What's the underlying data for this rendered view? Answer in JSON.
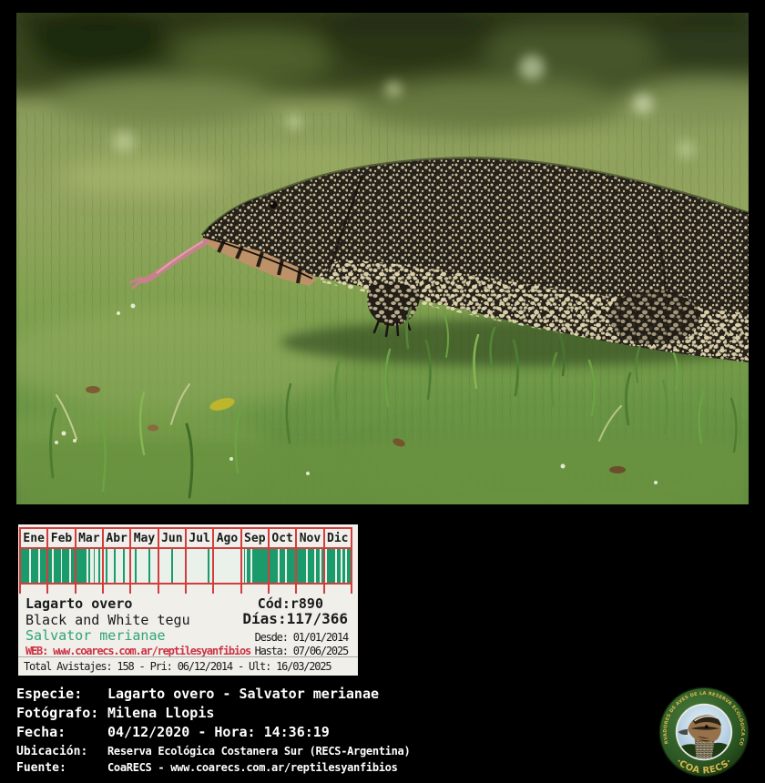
{
  "card": {
    "bg": "#f0efea",
    "grid_color": "#d43d3d",
    "bar_color": "#1b9a6c",
    "months": [
      {
        "label": "Ene",
        "pattern": "111110111101111"
      },
      {
        "label": "Feb",
        "pattern": "110111101111011"
      },
      {
        "label": "Mar",
        "pattern": "111111010010010"
      },
      {
        "label": "Abr",
        "pattern": "010000100001000"
      },
      {
        "label": "May",
        "pattern": "001000000010000"
      },
      {
        "label": "Jun",
        "pattern": "000000010000000"
      },
      {
        "label": "Jul",
        "pattern": "000000000000100"
      },
      {
        "label": "Ago",
        "pattern": "000000000000000"
      },
      {
        "label": "Sep",
        "pattern": "010110111111111"
      },
      {
        "label": "Oct",
        "pattern": "111110111011111"
      },
      {
        "label": "Nov",
        "pattern": "111110111101101"
      },
      {
        "label": "Dic",
        "pattern": "011111011011011"
      }
    ],
    "common_name": "Lagarto overo",
    "english_name": "Black and White tegu",
    "scientific_name": "Salvator merianae",
    "scientific_color": "#2fa474",
    "web_line": "WEB: www.coarecs.com.ar/reptilesyanfibios",
    "web_color": "#cc3344",
    "code": "Cód:r890",
    "days": "Días:117/366",
    "desde": "Desde: 01/01/2014",
    "hasta": "Hasta: 07/06/2025",
    "totals": "Total Avistajes: 158 - Pri: 06/12/2014 - Ult: 16/03/2025"
  },
  "meta": {
    "rows": [
      {
        "label": "Especie:",
        "value": "Lagarto overo - Salvator merianae"
      },
      {
        "label": "Fotógrafo:",
        "value": "Milena Llopis"
      },
      {
        "label": "Fecha:",
        "value": "04/12/2020 - Hora: 14:36:19"
      },
      {
        "label": "Ubicación:",
        "value": "Reserva Ecológica Costanera Sur (RECS-Argentina)"
      },
      {
        "label": "Fuente:",
        "value": "CoaRECS - www.coarecs.com.ar/reptilesyanfibios"
      }
    ]
  },
  "logo": {
    "ring_text": "CLUB DE OBSERVADORES DE AVES DE LA RESERVA ECOLÓGICA COSTANERA SUR",
    "name": "·COA RECS·",
    "ring_color": "#2a5523",
    "gold": "#d9b94c"
  }
}
